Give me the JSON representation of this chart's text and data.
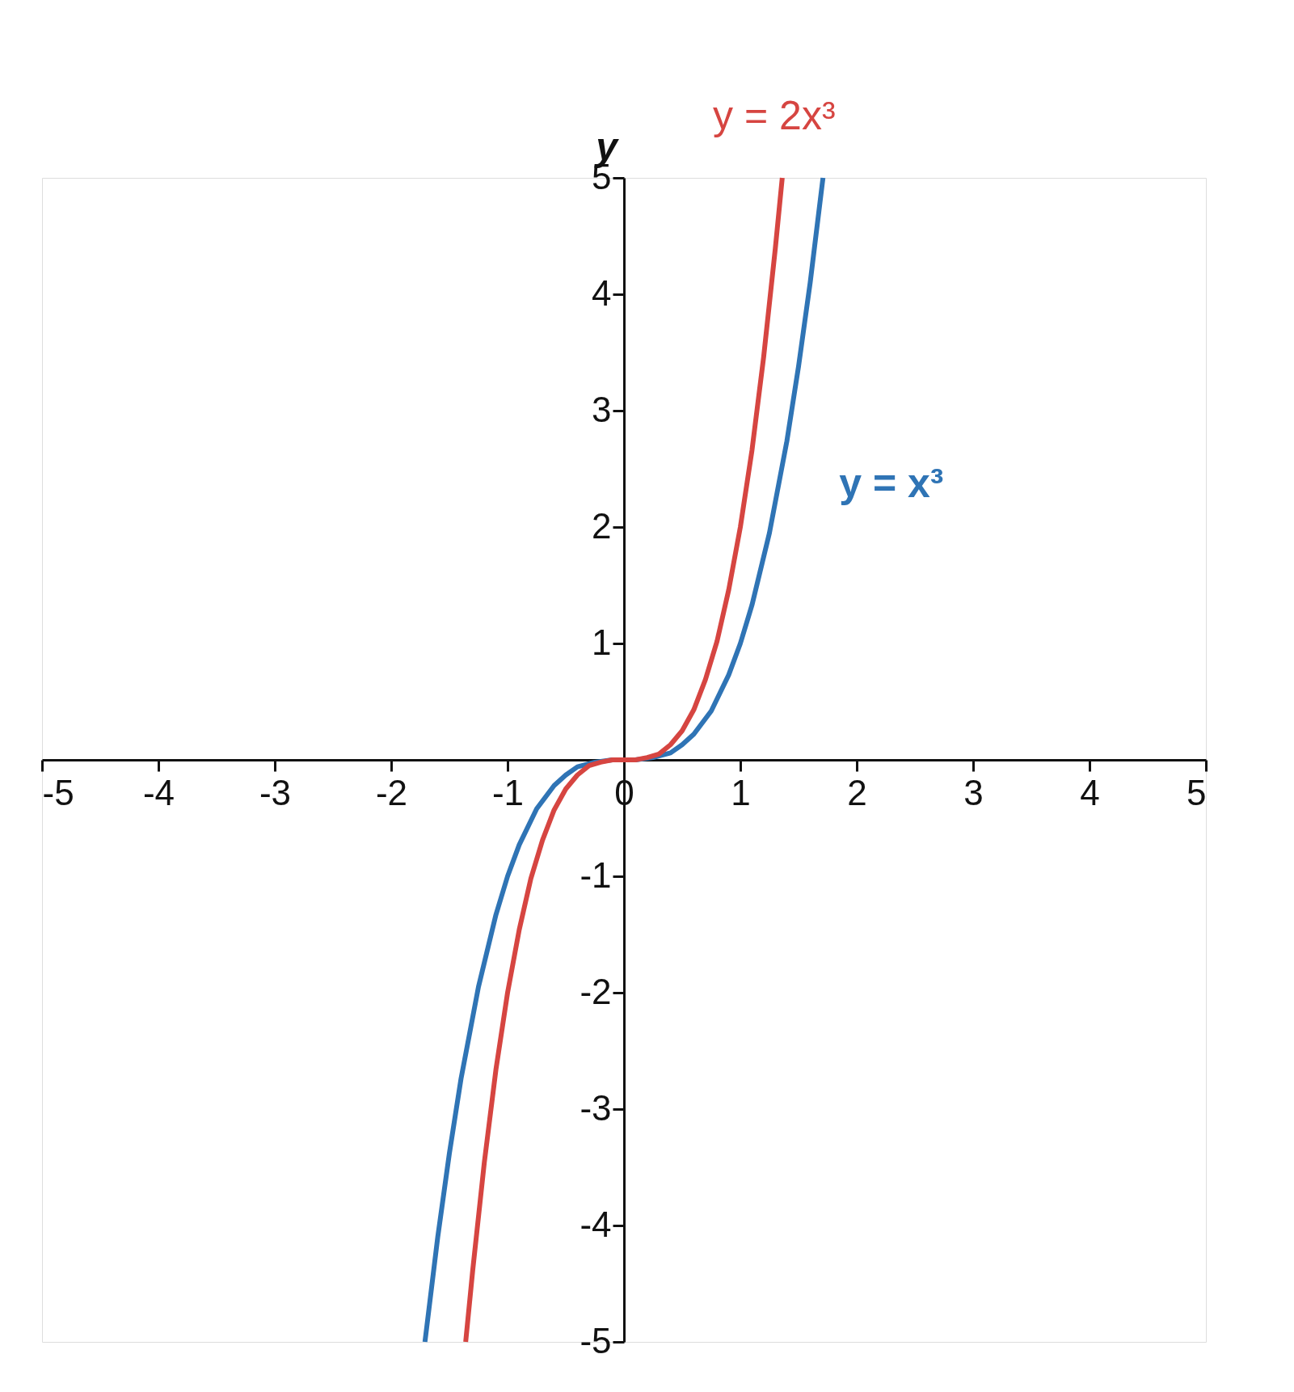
{
  "chart_data": {
    "type": "line",
    "ylabel": "y",
    "xlim": [
      -5,
      5
    ],
    "ylim": [
      -5,
      5
    ],
    "xticks": [
      -5,
      -4,
      -3,
      -2,
      -1,
      0,
      1,
      2,
      3,
      4,
      5
    ],
    "yticks": [
      -5,
      -4,
      -3,
      -2,
      -1,
      1,
      2,
      3,
      4,
      5
    ],
    "grid": false,
    "marker": "none",
    "line_style": "solid",
    "series": [
      {
        "name": "y = x³",
        "color": "#2f74b5",
        "x": [
          -1.71,
          -1.6,
          -1.5,
          -1.4,
          -1.25,
          -1.1,
          -1,
          -0.9,
          -0.75,
          -0.6,
          -0.5,
          -0.4,
          -0.25,
          -0.1,
          0,
          0.1,
          0.25,
          0.4,
          0.5,
          0.6,
          0.75,
          0.9,
          1,
          1.1,
          1.25,
          1.4,
          1.5,
          1.6,
          1.71
        ],
        "values": [
          -5,
          -4.1,
          -3.38,
          -2.74,
          -1.95,
          -1.33,
          -1,
          -0.73,
          -0.42,
          -0.22,
          -0.13,
          -0.06,
          -0.02,
          0,
          0,
          0,
          0.02,
          0.06,
          0.13,
          0.22,
          0.42,
          0.73,
          1,
          1.33,
          1.95,
          2.74,
          3.38,
          4.1,
          5
        ]
      },
      {
        "name": "y = 2x³",
        "color": "#d64541",
        "x": [
          -1.36,
          -1.3,
          -1.2,
          -1.1,
          -1,
          -0.9,
          -0.8,
          -0.7,
          -0.6,
          -0.5,
          -0.4,
          -0.3,
          -0.2,
          -0.1,
          0,
          0.1,
          0.2,
          0.3,
          0.4,
          0.5,
          0.6,
          0.7,
          0.8,
          0.9,
          1,
          1.1,
          1.2,
          1.3,
          1.36
        ],
        "values": [
          -5,
          -4.39,
          -3.46,
          -2.66,
          -2,
          -1.46,
          -1.02,
          -0.69,
          -0.43,
          -0.25,
          -0.13,
          -0.05,
          -0.02,
          0,
          0,
          0,
          0.02,
          0.05,
          0.13,
          0.25,
          0.43,
          0.69,
          1.02,
          1.46,
          2,
          2.66,
          3.46,
          4.39,
          5
        ]
      }
    ]
  }
}
